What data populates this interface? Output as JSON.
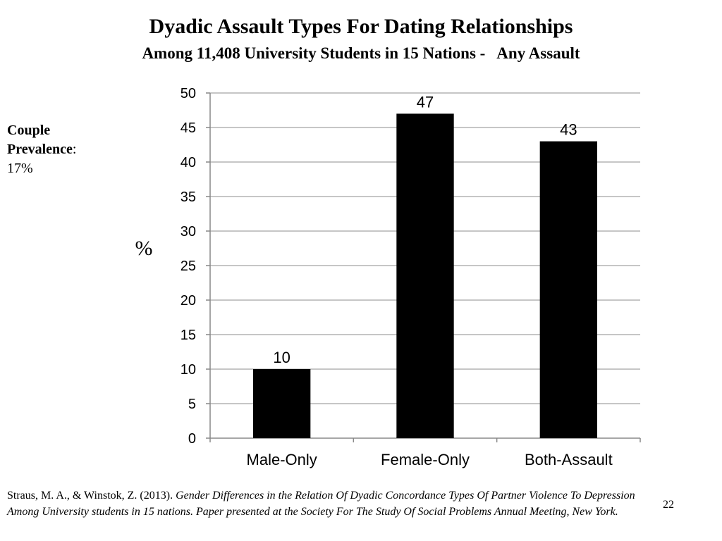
{
  "slide": {
    "title": "Dyadic Assault Types For Dating Relationships",
    "subtitle": "Among 11,408 University Students in 15 Nations -   Any Assault",
    "side_note": {
      "label": "Couple Prevalence",
      "colon": ":",
      "value": "17%"
    },
    "citation": {
      "plain": "Straus, M. A., & Winstok, Z. (2013). ",
      "italic": "Gender Differences in the Relation Of Dyadic Concordance Types Of Partner Violence To Depression Among University students in 15 nations. Paper presented at the Society For The Study Of Social Problems Annual Meeting, New York."
    },
    "page_number": "22"
  },
  "chart_data": {
    "type": "bar",
    "categories": [
      "Male-Only",
      "Female-Only",
      "Both-Assault"
    ],
    "values": [
      10,
      47,
      43
    ],
    "data_labels": [
      "10",
      "47",
      "43"
    ],
    "ylabel": "%",
    "xlabel": "",
    "ylim": [
      0,
      50
    ],
    "yticks": [
      "0",
      "5",
      "10",
      "15",
      "20",
      "25",
      "30",
      "35",
      "40",
      "45",
      "50"
    ],
    "grid": true,
    "bar_color": "#000000",
    "grid_color": "#b3b3b3"
  }
}
